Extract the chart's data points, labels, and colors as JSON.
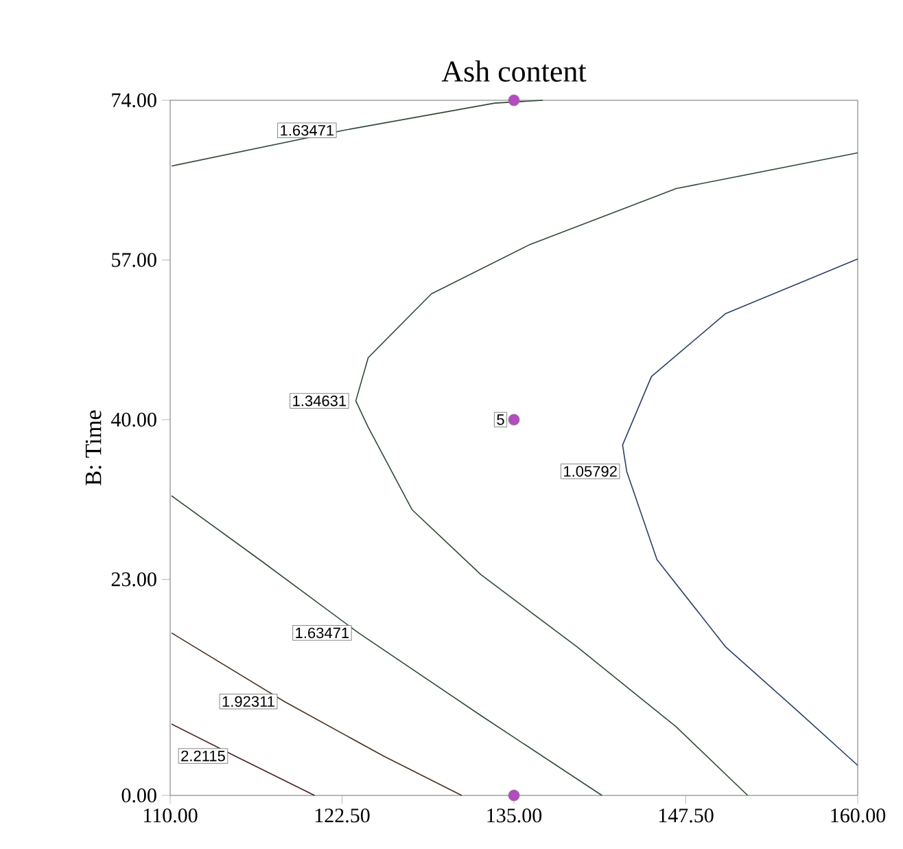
{
  "chart_data": {
    "type": "line",
    "title": "Ash content",
    "ylabel": "B: Time",
    "xlim": [
      110,
      160
    ],
    "ylim": [
      0,
      74
    ],
    "xticks": [
      {
        "value": 110,
        "label": "110.00"
      },
      {
        "value": 122.5,
        "label": "122.50"
      },
      {
        "value": 135,
        "label": "135.00"
      },
      {
        "value": 147.5,
        "label": "147.50"
      },
      {
        "value": 160,
        "label": "160.00"
      }
    ],
    "yticks": [
      {
        "value": 0,
        "label": "0.00"
      },
      {
        "value": 23,
        "label": "23.00"
      },
      {
        "value": 40,
        "label": "40.00"
      },
      {
        "value": 57,
        "label": "57.00"
      },
      {
        "value": 74,
        "label": "74.00"
      }
    ],
    "grid": false,
    "marker": "none",
    "line_style": "solid",
    "series": [
      {
        "color": "#2f4a35",
        "x": [
          110.1,
          122.6,
          133.6,
          137.1
        ],
        "values": [
          67.0,
          70.8,
          73.7,
          74
        ]
      },
      {
        "color": "#2f4a35",
        "x": [
          160,
          146.8,
          136.1,
          129.0,
          124.4,
          123.5,
          124.4,
          127.6,
          132.6,
          139.6,
          146.8,
          152.0
        ],
        "values": [
          68.4,
          64.6,
          58.6,
          53.4,
          46.6,
          42.0,
          39.2,
          30.4,
          23.5,
          15.8,
          7.3,
          0
        ]
      },
      {
        "color": "#2a3f66",
        "x": [
          160,
          150.4,
          145.0,
          142.9,
          143.2,
          145.4,
          150.4,
          155.7,
          160
        ],
        "values": [
          57.1,
          51.3,
          44.6,
          37.3,
          34.5,
          25.1,
          15.8,
          8.9,
          3.2
        ]
      },
      {
        "color": "#2f4a35",
        "x": [
          110.1,
          116.5,
          123.7,
          132.6,
          141.4
        ],
        "values": [
          31.9,
          25.1,
          17.3,
          8.5,
          0
        ]
      },
      {
        "color": "#4a3020",
        "x": [
          110.1,
          118.3,
          125.5,
          131.2
        ],
        "values": [
          17.3,
          10.0,
          4.2,
          0
        ]
      },
      {
        "color": "#4a2020",
        "x": [
          110.1,
          114.7,
          120.5
        ],
        "values": [
          7.6,
          4.2,
          0
        ]
      },
      {
        "type": "scatter",
        "marker": "circle",
        "color": "#b44bc0",
        "x": [
          135,
          135,
          135
        ],
        "values": [
          74,
          40,
          0
        ]
      }
    ],
    "annotations": [
      {
        "text": "1.63471",
        "x": 122.6,
        "y": 70.8
      },
      {
        "text": "1.34631",
        "x": 123.5,
        "y": 42.0
      },
      {
        "text": "1.05792",
        "x": 143.2,
        "y": 34.5
      },
      {
        "text": "1.63471",
        "x": 123.7,
        "y": 17.3
      },
      {
        "text": "1.92311",
        "x": 118.3,
        "y": 10.0
      },
      {
        "text": "2.2115",
        "x": 114.7,
        "y": 4.2
      },
      {
        "text": "5",
        "x": 135,
        "y": 40
      }
    ]
  }
}
